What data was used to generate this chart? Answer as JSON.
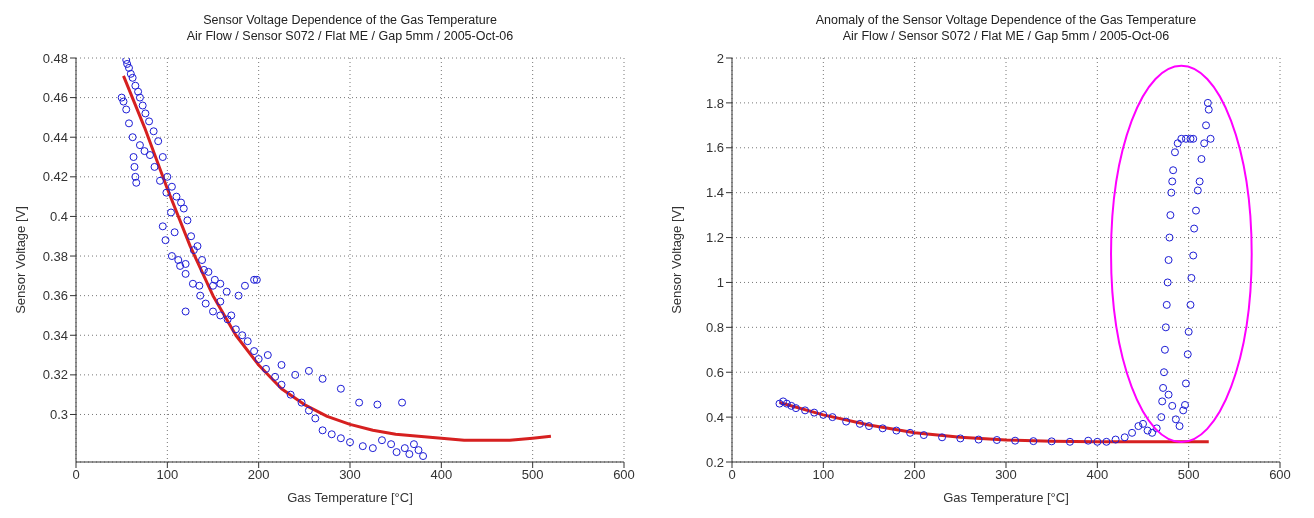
{
  "chart_data": [
    {
      "type": "scatter",
      "title": "Sensor Voltage Dependence of the Gas Temperature",
      "subtitle": "Air Flow / Sensor S072 / Flat ME / Gap 5mm / 2005-Oct-06",
      "xlabel": "Gas Temperature  [°C]",
      "ylabel": "Sensor Voltage  [V]",
      "xlim": [
        0,
        600
      ],
      "xticks": [
        0,
        100,
        200,
        300,
        400,
        500,
        600
      ],
      "ylim": [
        0.276,
        0.48
      ],
      "yticks": [
        0.3,
        0.32,
        0.34,
        0.36,
        0.38,
        0.4,
        0.42,
        0.44,
        0.46,
        0.48
      ],
      "grid": true,
      "series": [
        {
          "marker": "circle",
          "color": "#1c1cd6",
          "x": [
            55,
            56,
            58,
            60,
            62,
            65,
            68,
            70,
            73,
            76,
            80,
            85,
            90,
            95,
            100,
            105,
            110,
            115,
            118,
            122,
            126,
            129,
            133,
            138,
            145,
            152,
            158,
            165,
            50,
            52,
            55,
            58,
            62,
            63,
            64,
            65,
            66,
            70,
            75,
            81,
            86,
            92,
            99,
            104,
            108,
            114,
            120,
            128,
            136,
            142,
            150,
            158,
            166,
            175,
            182,
            188,
            195,
            200,
            208,
            218,
            225,
            235,
            247,
            255,
            262,
            270,
            280,
            290,
            300,
            314,
            325,
            335,
            345,
            351,
            360,
            365,
            370,
            375,
            380,
            95,
            98,
            105,
            112,
            120,
            140,
            150,
            158,
            170,
            178,
            185,
            195,
            198,
            210,
            225,
            240,
            255,
            270,
            290,
            310,
            330,
            357,
            120,
            135
          ],
          "values": [
            0.479,
            0.477,
            0.475,
            0.472,
            0.47,
            0.466,
            0.463,
            0.46,
            0.456,
            0.452,
            0.448,
            0.443,
            0.438,
            0.43,
            0.42,
            0.415,
            0.41,
            0.407,
            0.404,
            0.398,
            0.39,
            0.383,
            0.385,
            0.378,
            0.372,
            0.368,
            0.366,
            0.362,
            0.46,
            0.458,
            0.454,
            0.447,
            0.44,
            0.43,
            0.425,
            0.42,
            0.417,
            0.436,
            0.433,
            0.431,
            0.425,
            0.418,
            0.412,
            0.402,
            0.392,
            0.375,
            0.371,
            0.366,
            0.36,
            0.356,
            0.352,
            0.35,
            0.348,
            0.343,
            0.34,
            0.337,
            0.332,
            0.328,
            0.323,
            0.319,
            0.315,
            0.31,
            0.306,
            0.302,
            0.298,
            0.292,
            0.29,
            0.288,
            0.286,
            0.284,
            0.283,
            0.287,
            0.285,
            0.281,
            0.283,
            0.28,
            0.285,
            0.282,
            0.279,
            0.395,
            0.388,
            0.38,
            0.378,
            0.376,
            0.373,
            0.365,
            0.357,
            0.35,
            0.36,
            0.365,
            0.368,
            0.368,
            0.33,
            0.325,
            0.32,
            0.322,
            0.318,
            0.313,
            0.306,
            0.305,
            0.306,
            0.352,
            0.365
          ]
        },
        {
          "type": "line",
          "marker": "none",
          "color": "#d62020",
          "line_style": "solid",
          "x": [
            52,
            75,
            100,
            125,
            150,
            175,
            200,
            225,
            250,
            275,
            300,
            325,
            350,
            375,
            400,
            425,
            450,
            475,
            500,
            520
          ],
          "values": [
            0.471,
            0.445,
            0.414,
            0.385,
            0.36,
            0.34,
            0.325,
            0.313,
            0.305,
            0.299,
            0.295,
            0.292,
            0.29,
            0.289,
            0.288,
            0.287,
            0.287,
            0.287,
            0.288,
            0.289
          ]
        }
      ]
    },
    {
      "type": "scatter",
      "title": "Anomaly of the Sensor Voltage Dependence of the Gas Temperature",
      "subtitle": "Air Flow / Sensor S072 / Flat ME / Gap 5mm / 2005-Oct-06",
      "xlabel": "Gas Temperature  [°C]",
      "ylabel": "Sensor Voltage  [V]",
      "xlim": [
        0,
        600
      ],
      "xticks": [
        0,
        100,
        200,
        300,
        400,
        500,
        600
      ],
      "ylim": [
        0.2,
        2
      ],
      "yticks": [
        0.2,
        0.4,
        0.6,
        0.8,
        1,
        1.2,
        1.4,
        1.6,
        1.8,
        2
      ],
      "grid": true,
      "series": [
        {
          "marker": "circle",
          "color": "#1c1cd6",
          "x": [
            52,
            56,
            60,
            65,
            70,
            80,
            90,
            100,
            110,
            125,
            140,
            150,
            165,
            180,
            195,
            210,
            230,
            250,
            270,
            290,
            310,
            330,
            350,
            370,
            390,
            400,
            410,
            420,
            430,
            438,
            445,
            450,
            455,
            460,
            465,
            470,
            471,
            472,
            473,
            474,
            475,
            476,
            477,
            478,
            479,
            480,
            481,
            482,
            483,
            485,
            488,
            492,
            497,
            502,
            505,
            478,
            482,
            486,
            490,
            494,
            496,
            497,
            499,
            500,
            502,
            503,
            505,
            506,
            508,
            510,
            512,
            514,
            517,
            519,
            521,
            522,
            524
          ],
          "values": [
            0.46,
            0.47,
            0.46,
            0.45,
            0.44,
            0.43,
            0.42,
            0.41,
            0.4,
            0.38,
            0.37,
            0.36,
            0.35,
            0.34,
            0.33,
            0.32,
            0.31,
            0.305,
            0.3,
            0.298,
            0.295,
            0.293,
            0.292,
            0.29,
            0.295,
            0.29,
            0.29,
            0.3,
            0.31,
            0.33,
            0.36,
            0.37,
            0.34,
            0.33,
            0.35,
            0.4,
            0.47,
            0.53,
            0.6,
            0.7,
            0.8,
            0.9,
            1,
            1.1,
            1.2,
            1.3,
            1.4,
            1.45,
            1.5,
            1.58,
            1.62,
            1.64,
            1.64,
            1.64,
            1.64,
            0.5,
            0.45,
            0.39,
            0.36,
            0.43,
            0.454,
            0.55,
            0.68,
            0.78,
            0.9,
            1.02,
            1.12,
            1.24,
            1.32,
            1.41,
            1.45,
            1.55,
            1.62,
            1.7,
            1.8,
            1.77,
            1.64
          ]
        },
        {
          "type": "line",
          "marker": "none",
          "color": "#d62020",
          "line_style": "solid",
          "x": [
            52,
            100,
            150,
            200,
            250,
            300,
            350,
            400,
            450,
            500,
            522
          ],
          "values": [
            0.465,
            0.41,
            0.365,
            0.33,
            0.31,
            0.298,
            0.292,
            0.29,
            0.29,
            0.29,
            0.29
          ]
        }
      ]
    }
  ]
}
